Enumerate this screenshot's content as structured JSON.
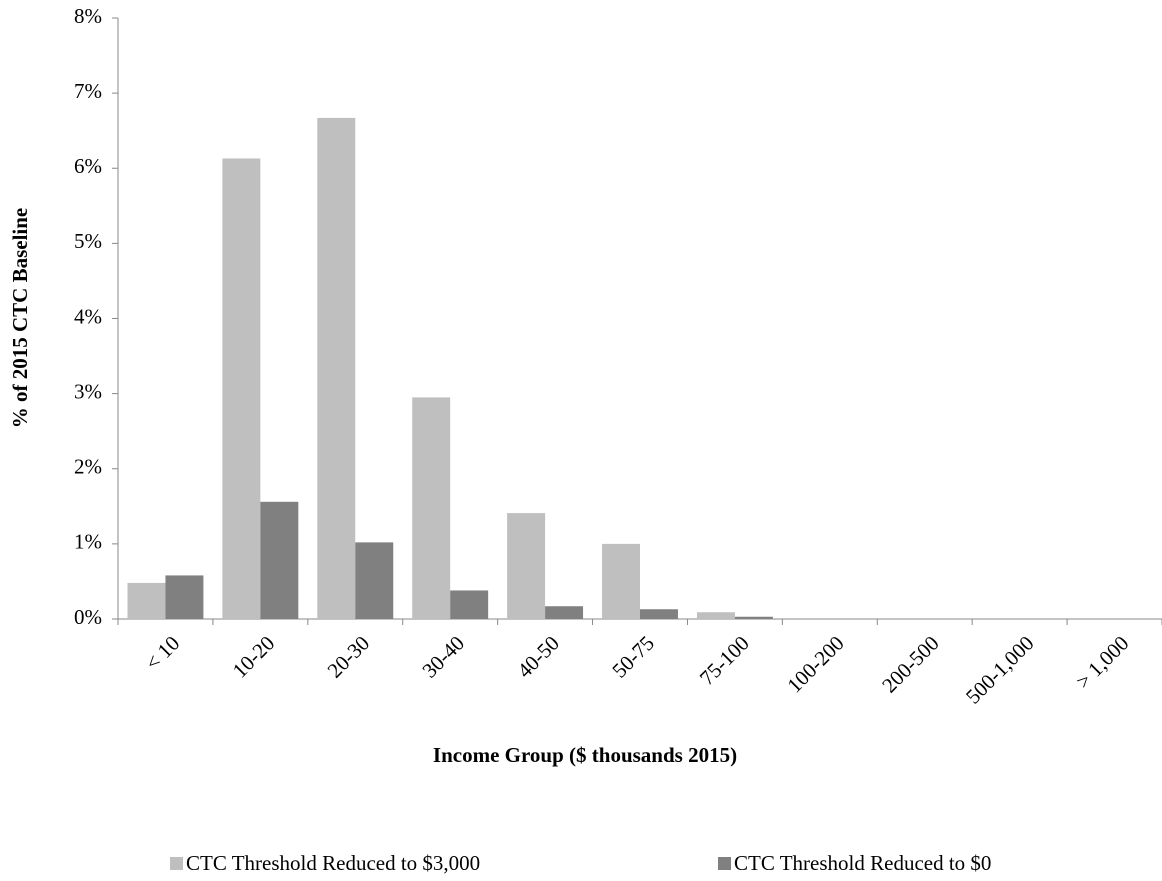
{
  "chart_data": {
    "type": "bar",
    "x_label": "Income Group ($ thousands 2015)",
    "y_label": "% of 2015 CTC Baseline",
    "categories": [
      "< 10",
      "10-20",
      "20-30",
      "30-40",
      "40-50",
      "50-75",
      "75-100",
      "100-200",
      "200-500",
      "500-1,000",
      "> 1,000"
    ],
    "series": [
      {
        "name": "CTC Threshold Reduced to $3,000",
        "color": "#bfbfbf",
        "values": [
          0.48,
          6.13,
          6.67,
          2.95,
          1.41,
          1.0,
          0.09,
          0,
          0,
          0,
          0
        ]
      },
      {
        "name": "CTC Threshold Reduced to $0",
        "color": "#808080",
        "values": [
          0.58,
          1.56,
          1.02,
          0.38,
          0.17,
          0.13,
          0.03,
          0,
          0,
          0,
          0
        ]
      }
    ],
    "ylim": [
      0,
      8
    ],
    "yticks": [
      {
        "value": 0,
        "label": "0%"
      },
      {
        "value": 1,
        "label": "1%"
      },
      {
        "value": 2,
        "label": "2%"
      },
      {
        "value": 3,
        "label": "3%"
      },
      {
        "value": 4,
        "label": "4%"
      },
      {
        "value": 5,
        "label": "5%"
      },
      {
        "value": 6,
        "label": "6%"
      },
      {
        "value": 7,
        "label": "7%"
      },
      {
        "value": 8,
        "label": "8%"
      }
    ],
    "grid": false,
    "legend": "bottom"
  }
}
